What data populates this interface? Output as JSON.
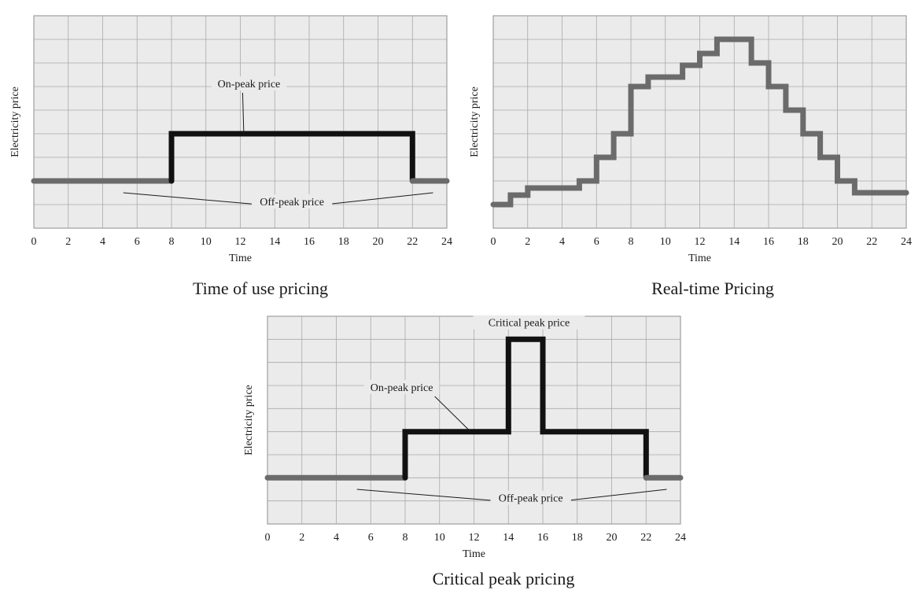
{
  "chart_data": [
    {
      "id": "tou",
      "type": "line",
      "step": true,
      "title": "Time of use pricing",
      "xlabel": "Time",
      "ylabel": "Electricity price",
      "xlim": [
        0,
        24
      ],
      "ylim": [
        0,
        9
      ],
      "xticks": [
        0,
        2,
        4,
        6,
        8,
        10,
        12,
        14,
        16,
        18,
        20,
        22,
        24
      ],
      "grid": true,
      "series": [
        {
          "name": "Off-peak price",
          "color": "#6b6b6b",
          "x": [
            0,
            8
          ],
          "y": [
            2,
            2
          ]
        },
        {
          "name": "On-peak price",
          "color": "#111111",
          "x": [
            8,
            8,
            22,
            22
          ],
          "y": [
            2,
            4,
            4,
            2
          ]
        },
        {
          "name": "Off-peak price",
          "color": "#6b6b6b",
          "x": [
            22,
            24
          ],
          "y": [
            2,
            2
          ]
        }
      ],
      "annotations": [
        {
          "text": "On-peak price",
          "x": 12.5,
          "y": 6,
          "pointers": [
            [
              12.2,
              4
            ]
          ]
        },
        {
          "text": "Off-peak price",
          "x": 15,
          "y": 1,
          "pointers": [
            [
              5.2,
              1.5
            ],
            [
              23.2,
              1.5
            ]
          ]
        }
      ]
    },
    {
      "id": "rtp",
      "type": "line",
      "step": true,
      "title": "Real-time Pricing",
      "xlabel": "Time",
      "ylabel": "Electricity price",
      "xlim": [
        0,
        24
      ],
      "ylim": [
        0,
        9
      ],
      "xticks": [
        0,
        2,
        4,
        6,
        8,
        10,
        12,
        14,
        16,
        18,
        20,
        22,
        24
      ],
      "grid": true,
      "series": [
        {
          "name": "",
          "color": "#6b6b6b",
          "x": [
            0,
            1,
            1,
            2,
            2,
            5,
            5,
            6,
            6,
            7,
            7,
            8,
            8,
            9,
            9,
            11,
            11,
            12,
            12,
            13,
            13,
            15,
            15,
            16,
            16,
            17,
            17,
            18,
            18,
            19,
            19,
            20,
            20,
            21,
            21,
            24
          ],
          "y": [
            1,
            1,
            1.4,
            1.4,
            1.7,
            1.7,
            2,
            2,
            3,
            3,
            4,
            4,
            6,
            6,
            6.4,
            6.4,
            6.9,
            6.9,
            7.4,
            7.4,
            8,
            8,
            7,
            7,
            6,
            6,
            5,
            5,
            4,
            4,
            3,
            3,
            2,
            2,
            1.5,
            1.5
          ]
        }
      ]
    },
    {
      "id": "cpp",
      "type": "line",
      "step": true,
      "title": "Critical peak pricing",
      "xlabel": "Time",
      "ylabel": "Electricity price",
      "xlim": [
        0,
        24
      ],
      "ylim": [
        0,
        9
      ],
      "xticks": [
        0,
        2,
        4,
        6,
        8,
        10,
        12,
        14,
        16,
        18,
        20,
        22,
        24
      ],
      "grid": true,
      "series": [
        {
          "name": "Off-peak price",
          "color": "#6b6b6b",
          "x": [
            0,
            8
          ],
          "y": [
            2,
            2
          ]
        },
        {
          "name": "On-peak price",
          "color": "#111111",
          "x": [
            8,
            8,
            14,
            14,
            16,
            16,
            22,
            22
          ],
          "y": [
            2,
            4,
            4,
            8,
            8,
            4,
            4,
            2
          ]
        },
        {
          "name": "Off-peak price",
          "color": "#6b6b6b",
          "x": [
            22,
            24
          ],
          "y": [
            2,
            2
          ]
        }
      ],
      "annotations": [
        {
          "text": "Critical peak  price",
          "x": 15.2,
          "y": 8.6,
          "pointers": []
        },
        {
          "text": "On-peak price",
          "x": 7.8,
          "y": 5.8,
          "pointers": [
            [
              11.8,
              4
            ]
          ]
        },
        {
          "text": "Off-peak price",
          "x": 15.3,
          "y": 1,
          "pointers": [
            [
              5.2,
              1.5
            ],
            [
              23.2,
              1.5
            ]
          ]
        }
      ]
    }
  ]
}
